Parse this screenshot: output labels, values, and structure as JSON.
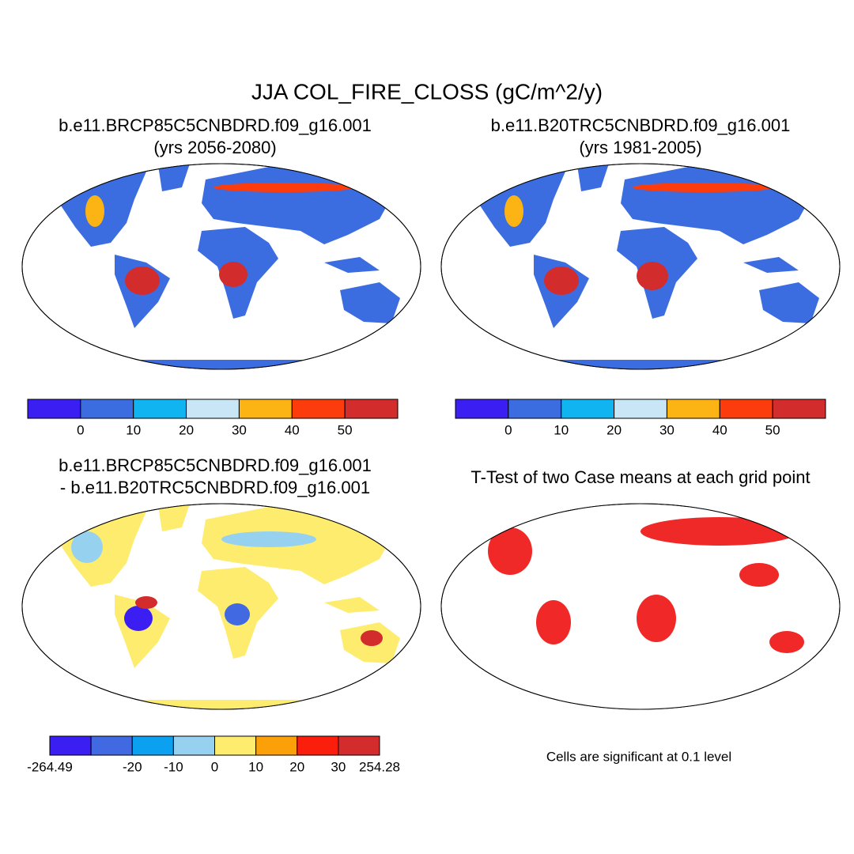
{
  "title": "JJA COL_FIRE_CLOSS (gC/m^2/y)",
  "panels": [
    {
      "title": [
        "b.e11.BRCP85C5CNBDRD.f09_g16.001",
        "(yrs 2056-2080)"
      ],
      "colorbar": {
        "colors": [
          "#3a1ef2",
          "#3b6de0",
          "#10b4f0",
          "#c8e6f5",
          "#fcb414",
          "#fc3c0c",
          "#d22c2c"
        ],
        "labels": [
          null,
          "0",
          "10",
          "20",
          "30",
          "40",
          "50",
          null
        ]
      }
    },
    {
      "title": [
        "b.e11.B20TRC5CNBDRD.f09_g16.001",
        "(yrs 1981-2005)"
      ],
      "colorbar": {
        "colors": [
          "#3a1ef2",
          "#3b6de0",
          "#10b4f0",
          "#c8e6f5",
          "#fcb414",
          "#fc3c0c",
          "#d22c2c"
        ],
        "labels": [
          null,
          "0",
          "10",
          "20",
          "30",
          "40",
          "50",
          null
        ]
      }
    },
    {
      "title": [
        "b.e11.BRCP85C5CNBDRD.f09_g16.001",
        "- b.e11.B20TRC5CNBDRD.f09_g16.001"
      ],
      "colorbar": {
        "colors": [
          "#3a1ef2",
          "#4169e1",
          "#0ca0f0",
          "#96d2f0",
          "#fdec6e",
          "#fca00a",
          "#fc1e0c",
          "#d22c2c"
        ],
        "labels": [
          "-264.49",
          null,
          "-20",
          "-10",
          "0",
          "10",
          "20",
          "30",
          "254.28"
        ]
      }
    },
    {
      "title": [
        "T-Test of two Case means at each grid point"
      ],
      "note": "Cells are significant at 0.1 level"
    }
  ]
}
